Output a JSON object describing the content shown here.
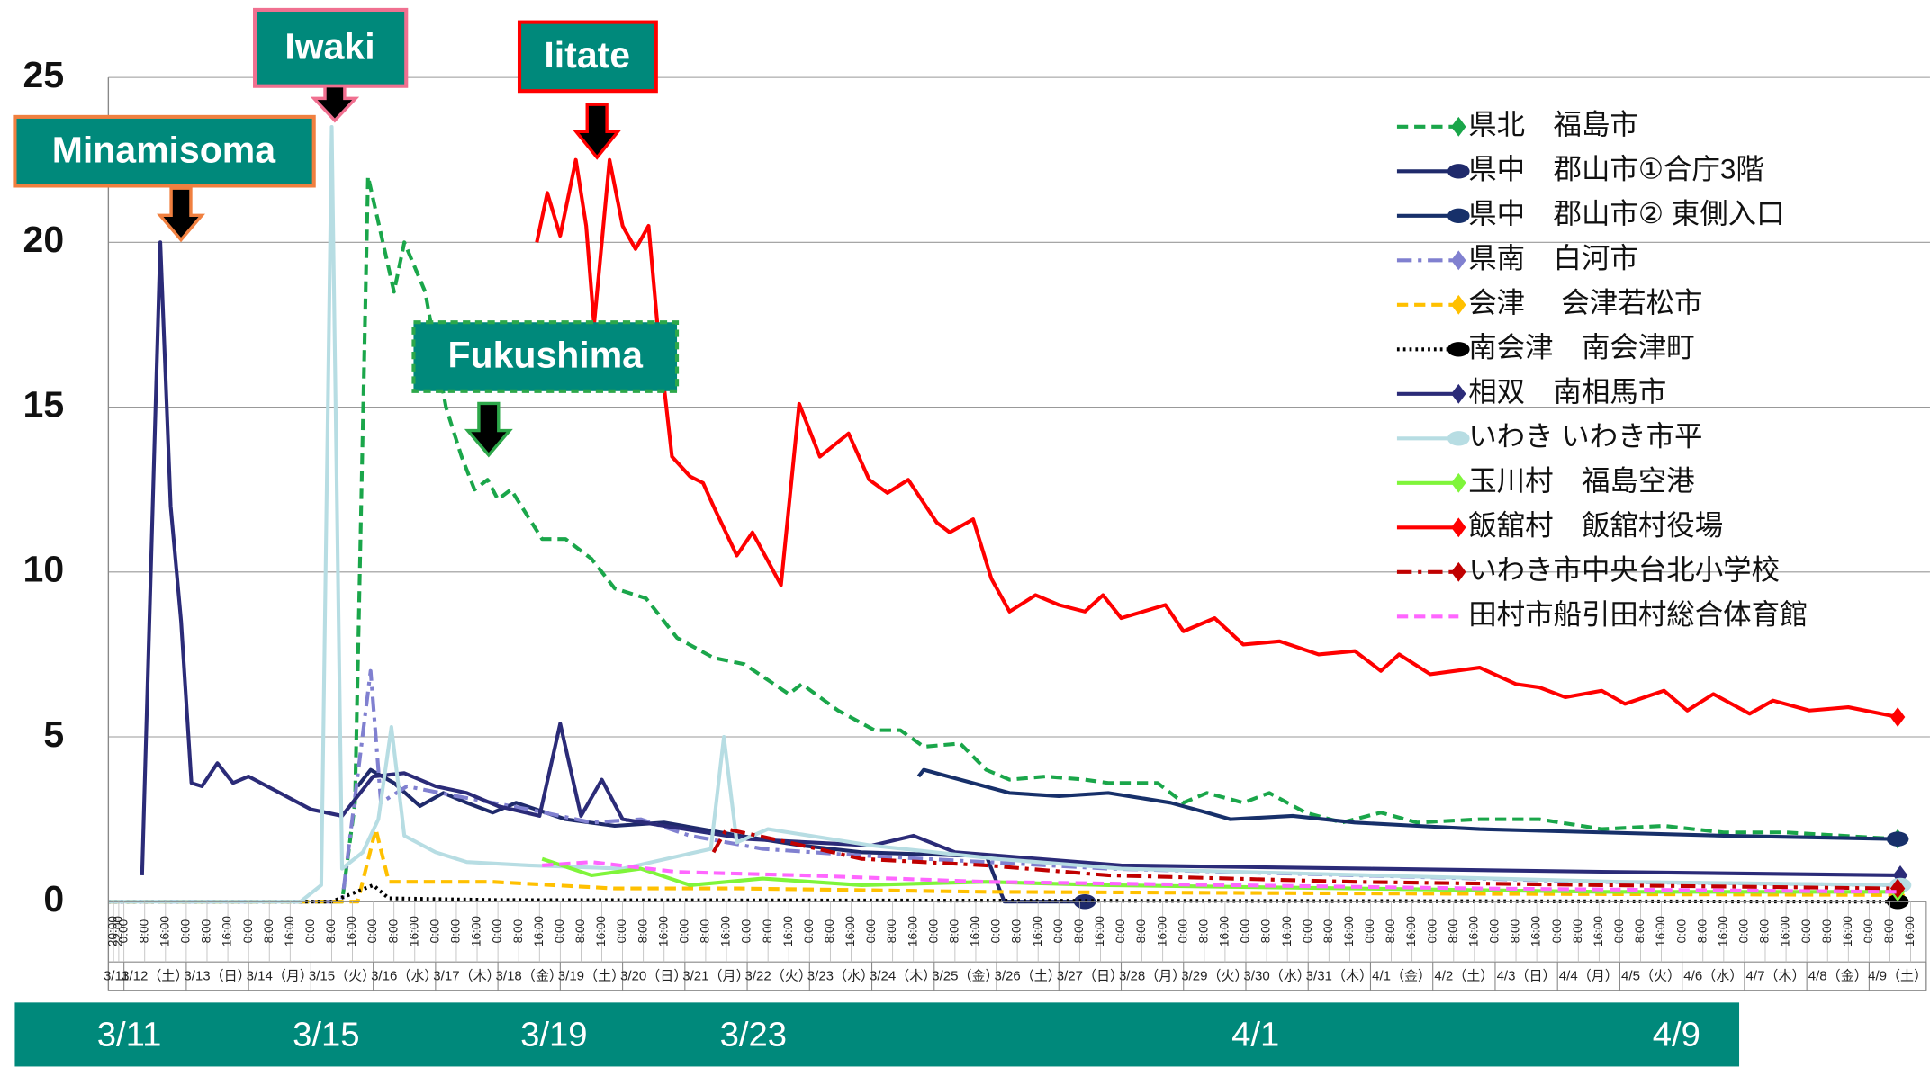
{
  "chart_data": {
    "type": "line",
    "annotations": [
      "Minamisoma",
      "Iwaki",
      "Iitate",
      "Fukushima"
    ],
    "timeline": [
      "3/11",
      "3/15",
      "3/19",
      "3/23",
      "4/1",
      "4/9"
    ],
    "xlim": [
      "3/11 18:00",
      "4/9 22:00"
    ],
    "ylim": [
      0,
      25
    ],
    "yticks": [
      0,
      5,
      10,
      15,
      20,
      25
    ],
    "grid": true,
    "day_labels": [
      "3/11",
      "3/12（土）",
      "3/13（日）",
      "3/14（月）",
      "3/15（火）",
      "3/16（水）",
      "3/17（木）",
      "3/18（金）",
      "3/19（土）",
      "3/20（日）",
      "3/21（月）",
      "3/22（火）",
      "3/23（水）",
      "3/24（木）",
      "3/25（金）",
      "3/26（土）",
      "3/27（日）",
      "3/28（月）",
      "3/29（火）",
      "3/30（水）",
      "3/31（木）",
      "4/1（金）",
      "4/2（土）",
      "4/3（日）",
      "4/4（月）",
      "4/5（火）",
      "4/6（水）",
      "4/7（木）",
      "4/8（金）",
      "4/9（土）"
    ],
    "xticks": [
      {
        "value": "3/11 20:00",
        "label": "20:00"
      },
      {
        "value": "3/11 22:00",
        "label": "22:00"
      },
      {
        "value": "3/12 0:00",
        "label": "0:00"
      },
      {
        "value": "3/12 8:00",
        "label": "8:00"
      },
      {
        "value": "3/12 16:00",
        "label": "16:00"
      },
      {
        "value": "3/13 0:00",
        "label": "0:00"
      },
      {
        "value": "3/13 8:00",
        "label": "8:00"
      },
      {
        "value": "3/13 16:00",
        "label": "16:00"
      },
      {
        "value": "3/14 0:00",
        "label": "0:00"
      },
      {
        "value": "3/14 8:00",
        "label": "8:00"
      },
      {
        "value": "3/14 16:00",
        "label": "16:00"
      },
      {
        "value": "3/15 0:00",
        "label": "0:00"
      },
      {
        "value": "3/15 8:00",
        "label": "8:00"
      },
      {
        "value": "3/15 16:00",
        "label": "16:00"
      },
      {
        "value": "3/16 0:00",
        "label": "0:00"
      },
      {
        "value": "3/16 8:00",
        "label": "8:00"
      },
      {
        "value": "3/16 16:00",
        "label": "16:00"
      },
      {
        "value": "3/17 0:00",
        "label": "0:00"
      },
      {
        "value": "3/17 8:00",
        "label": "8:00"
      },
      {
        "value": "3/17 16:00",
        "label": "16:00"
      },
      {
        "value": "3/18 0:00",
        "label": "0:00"
      },
      {
        "value": "3/18 8:00",
        "label": "8:00"
      },
      {
        "value": "3/18 16:00",
        "label": "16:00"
      },
      {
        "value": "3/19 0:00",
        "label": "0:00"
      },
      {
        "value": "3/19 8:00",
        "label": "8:00"
      },
      {
        "value": "3/19 16:00",
        "label": "16:00"
      },
      {
        "value": "3/20 0:00",
        "label": "0:00"
      },
      {
        "value": "3/20 8:00",
        "label": "8:00"
      },
      {
        "value": "3/20 16:00",
        "label": "16:00"
      },
      {
        "value": "3/21 0:00",
        "label": "0:00"
      },
      {
        "value": "3/21 8:00",
        "label": "8:00"
      },
      {
        "value": "3/21 16:00",
        "label": "16:00"
      },
      {
        "value": "3/22 0:00",
        "label": "0:00"
      },
      {
        "value": "3/22 8:00",
        "label": "8:00"
      },
      {
        "value": "3/22 16:00",
        "label": "16:00"
      },
      {
        "value": "3/23 0:00",
        "label": "0:00"
      },
      {
        "value": "3/23 8:00",
        "label": "8:00"
      },
      {
        "value": "3/23 16:00",
        "label": "16:00"
      },
      {
        "value": "3/24 0:00",
        "label": "0:00"
      },
      {
        "value": "3/24 8:00",
        "label": "8:00"
      },
      {
        "value": "3/24 16:00",
        "label": "16:00"
      },
      {
        "value": "3/25 0:00",
        "label": "0:00"
      },
      {
        "value": "3/25 8:00",
        "label": "8:00"
      },
      {
        "value": "3/25 16:00",
        "label": "16:00"
      },
      {
        "value": "3/26 0:00",
        "label": "0:00"
      },
      {
        "value": "3/26 8:00",
        "label": "8:00"
      },
      {
        "value": "3/26 16:00",
        "label": "16:00"
      },
      {
        "value": "3/27 0:00",
        "label": "0:00"
      },
      {
        "value": "3/27 8:00",
        "label": "8:00"
      },
      {
        "value": "3/27 16:00",
        "label": "16:00"
      },
      {
        "value": "3/28 0:00",
        "label": "0:00"
      },
      {
        "value": "3/28 8:00",
        "label": "8:00"
      },
      {
        "value": "3/28 16:00",
        "label": "16:00"
      },
      {
        "value": "3/29 0:00",
        "label": "0:00"
      },
      {
        "value": "3/29 8:00",
        "label": "8:00"
      },
      {
        "value": "3/29 16:00",
        "label": "16:00"
      },
      {
        "value": "3/30 0:00",
        "label": "0:00"
      },
      {
        "value": "3/30 8:00",
        "label": "8:00"
      },
      {
        "value": "3/30 16:00",
        "label": "16:00"
      },
      {
        "value": "3/31 0:00",
        "label": "0:00"
      },
      {
        "value": "3/31 8:00",
        "label": "8:00"
      },
      {
        "value": "3/31 16:00",
        "label": "16:00"
      },
      {
        "value": "4/1 0:00",
        "label": "0:00"
      },
      {
        "value": "4/1 8:00",
        "label": "8:00"
      },
      {
        "value": "4/1 16:00",
        "label": "16:00"
      },
      {
        "value": "4/2 0:00",
        "label": "0:00"
      },
      {
        "value": "4/2 8:00",
        "label": "8:00"
      },
      {
        "value": "4/2 16:00",
        "label": "16:00"
      },
      {
        "value": "4/3 0:00",
        "label": "0:00"
      },
      {
        "value": "4/3 8:00",
        "label": "8:00"
      },
      {
        "value": "4/3 16:00",
        "label": "16:00"
      },
      {
        "value": "4/4 0:00",
        "label": "0:00"
      },
      {
        "value": "4/4 8:00",
        "label": "8:00"
      },
      {
        "value": "4/4 16:00",
        "label": "16:00"
      },
      {
        "value": "4/5 0:00",
        "label": "0:00"
      },
      {
        "value": "4/5 8:00",
        "label": "8:00"
      },
      {
        "value": "4/5 16:00",
        "label": "16:00"
      },
      {
        "value": "4/6 0:00",
        "label": "0:00"
      },
      {
        "value": "4/6 8:00",
        "label": "8:00"
      },
      {
        "value": "4/6 16:00",
        "label": "16:00"
      },
      {
        "value": "4/7 0:00",
        "label": "0:00"
      },
      {
        "value": "4/7 8:00",
        "label": "8:00"
      },
      {
        "value": "4/7 16:00",
        "label": "16:00"
      },
      {
        "value": "4/8 0:00",
        "label": "0:00"
      },
      {
        "value": "4/8 8:00",
        "label": "8:00"
      },
      {
        "value": "4/8 16:00",
        "label": "16:00"
      },
      {
        "value": "4/9 0:00",
        "label": "0:00"
      },
      {
        "value": "4/9 8:00",
        "label": "8:00"
      },
      {
        "value": "4/9 16:00",
        "label": "16:00"
      }
    ],
    "series": [
      {
        "name": "県北　福島市",
        "color": "#1aa64a",
        "dash": "dashed",
        "marker": "diamond",
        "x": [
          "3/11 18:00",
          "3/15 12:00",
          "3/15 17:00",
          "3/15 22:00",
          "3/16 8:00",
          "3/16 12:00",
          "3/16 20:00",
          "3/17 4:00",
          "3/17 10:00",
          "3/17 15:00",
          "3/17 20:00",
          "3/18 0:00",
          "3/18 5:00",
          "3/18 17:00",
          "3/19 2:00",
          "3/19 12:00",
          "3/19 21:00",
          "3/20 9:00",
          "3/20 21:00",
          "3/21 11:00",
          "3/21 23:00",
          "3/22 16:00",
          "3/22 21:00",
          "3/23 11:00",
          "3/24 1:00",
          "3/24 11:00",
          "3/24 20:00",
          "3/25 10:00",
          "3/25 20:00",
          "3/26 5:00",
          "3/26 19:00",
          "3/27 10:00",
          "3/27 19:00",
          "3/28 14:00",
          "3/29 0:00",
          "3/29 9:00",
          "3/29 23:00",
          "3/30 9:00",
          "3/30 23:00",
          "3/31 13:00",
          "4/1 4:00",
          "4/1 18:00",
          "4/2 18:00",
          "4/3 17:00",
          "4/4 17:00",
          "4/5 17:00",
          "4/6 16:00",
          "4/7 16:00",
          "4/9 11:00"
        ],
        "values": [
          0,
          0,
          3,
          22,
          18.5,
          20,
          18.5,
          15,
          13.5,
          12.5,
          12.8,
          12.2,
          12.5,
          11,
          11,
          10.4,
          9.5,
          9.2,
          8,
          7.4,
          7.2,
          6.3,
          6.6,
          5.8,
          5.2,
          5.2,
          4.7,
          4.8,
          4,
          3.7,
          3.8,
          3.7,
          3.6,
          3.6,
          3,
          3.3,
          3,
          3.3,
          2.7,
          2.4,
          2.7,
          2.4,
          2.5,
          2.5,
          2.2,
          2.3,
          2.1,
          2.1,
          1.9
        ]
      },
      {
        "name": "県中　郡山市①合庁3階",
        "color": "#1f2a6b",
        "dash": "solid",
        "marker": "circle",
        "x": [
          "3/15 18:00",
          "3/15 23:00",
          "3/16 8:00",
          "3/16 18:00",
          "3/17 3:00",
          "3/17 12:00",
          "3/17 22:00",
          "3/18 7:00",
          "3/19 2:00",
          "3/19 21:00",
          "3/20 16:00",
          "3/21 21:00",
          "3/22 21:00",
          "3/23 20:00",
          "3/25 10:00",
          "3/25 20:00",
          "3/26 3:00",
          "3/27 10:00"
        ],
        "values": [
          3.5,
          4,
          3.6,
          2.9,
          3.3,
          3,
          2.7,
          3,
          2.5,
          2.3,
          2.4,
          2,
          1.7,
          1.5,
          1.4,
          1.4,
          0,
          0
        ]
      },
      {
        "name": "県中　郡山市② 東側入口",
        "color": "#17306a",
        "dash": "solid",
        "marker": "circle",
        "x": [
          "3/24 18:00",
          "3/24 20:00",
          "3/25 10:00",
          "3/26 5:00",
          "3/27 0:00",
          "3/27 19:00",
          "3/28 19:00",
          "3/29 9:00",
          "3/29 18:00",
          "3/30 18:00",
          "3/31 18:00",
          "4/1 18:00",
          "4/2 18:00",
          "4/4 17:00",
          "4/6 16:00",
          "4/9 11:00"
        ],
        "values": [
          3.8,
          4,
          3.7,
          3.3,
          3.2,
          3.3,
          3,
          2.7,
          2.5,
          2.6,
          2.4,
          2.3,
          2.2,
          2.1,
          2,
          1.9
        ]
      },
      {
        "name": "県南　白河市",
        "color": "#8080d0",
        "dash": "dashdot",
        "marker": "diamond",
        "x": [
          "3/11 18:00",
          "3/15 12:00",
          "3/15 23:00",
          "3/16 3:00",
          "3/16 13:00",
          "3/17 8:00",
          "3/18 12:00",
          "3/19 12:00",
          "3/20 7:00",
          "3/21 2:00",
          "3/22 6:00",
          "3/23 20:00",
          "3/25 20:00",
          "3/27 19:00",
          "3/31 18:00",
          "4/4 17:00",
          "4/9 11:00"
        ],
        "values": [
          0,
          0,
          7,
          3,
          3.5,
          3.2,
          2.8,
          2.4,
          2.5,
          2,
          1.6,
          1.4,
          1.2,
          1,
          0.8,
          0.6,
          0.5
        ]
      },
      {
        "name": "会津　 会津若松市",
        "color": "#ffc000",
        "dash": "dashed",
        "marker": "diamond",
        "x": [
          "3/11 18:00",
          "3/15 18:00",
          "3/16 1:00",
          "3/16 6:00",
          "3/17 22:00",
          "3/19 21:00",
          "3/21 21:00",
          "3/25 20:00",
          "3/31 18:00",
          "4/9 11:00"
        ],
        "values": [
          0,
          0,
          2.2,
          0.6,
          0.6,
          0.4,
          0.4,
          0.3,
          0.25,
          0.2
        ]
      },
      {
        "name": "南会津　南会津町",
        "color": "#000000",
        "dash": "dotted",
        "marker": "circle",
        "x": [
          "3/11 18:00",
          "3/15 8:00",
          "3/16 0:00",
          "3/16 6:00",
          "3/18 0:00",
          "4/9 11:00"
        ],
        "values": [
          0,
          0,
          0.5,
          0.1,
          0.05,
          0
        ]
      },
      {
        "name": "相双　南相馬市",
        "color": "#2b2b78",
        "dash": "solid",
        "marker": "diamond",
        "x": [
          "3/12 7:00",
          "3/12 14:00",
          "3/12 18:00",
          "3/12 22:00",
          "3/13 2:00",
          "3/13 6:00",
          "3/13 12:00",
          "3/13 18:00",
          "3/14 0:00",
          "3/14 12:00",
          "3/15 0:00",
          "3/15 12:00",
          "3/16 0:00",
          "3/16 12:00",
          "3/17 0:00",
          "3/17 12:00",
          "3/18 0:00",
          "3/18 16:00",
          "3/19 0:00",
          "3/19 8:00",
          "3/19 16:00",
          "3/20 0:00",
          "3/21 0:00",
          "3/22 0:00",
          "3/23 0:00",
          "3/24 0:00",
          "3/24 16:00",
          "3/25 8:00",
          "3/26 0:00",
          "3/28 0:00",
          "4/1 0:00",
          "4/5 0:00",
          "4/9 12:00"
        ],
        "values": [
          0.8,
          20,
          12,
          8.5,
          3.6,
          3.5,
          4.2,
          3.6,
          3.8,
          3.3,
          2.8,
          2.6,
          3.8,
          3.9,
          3.5,
          3.3,
          2.9,
          2.6,
          5.4,
          2.6,
          3.7,
          2.5,
          2.2,
          1.9,
          1.8,
          1.7,
          2,
          1.5,
          1.4,
          1.1,
          1,
          0.9,
          0.8
        ]
      },
      {
        "name": "いわき いわき市平",
        "color": "#b7dde3",
        "dash": "solid",
        "marker": "circle",
        "x": [
          "3/11 18:00",
          "3/14 20:00",
          "3/15 4:00",
          "3/15 8:00",
          "3/15 12:00",
          "3/15 20:00",
          "3/16 2:00",
          "3/16 7:00",
          "3/16 12:00",
          "3/17 0:00",
          "3/17 12:00",
          "3/18 12:00",
          "3/20 0:00",
          "3/21 10:00",
          "3/21 15:00",
          "3/21 20:00",
          "3/22 8:00",
          "3/24 0:00",
          "3/25 0:00",
          "3/26 0:00",
          "3/28 0:00",
          "4/1 0:00",
          "4/5 0:00",
          "4/9 12:00"
        ],
        "values": [
          0,
          0,
          0.5,
          23.5,
          1,
          1.5,
          2.5,
          5.3,
          2,
          1.5,
          1.2,
          1.1,
          1,
          1.6,
          5,
          1.8,
          2.2,
          1.7,
          1.5,
          1.3,
          1,
          0.8,
          0.6,
          0.5
        ]
      },
      {
        "name": "玉川村　福島空港",
        "color": "#7ff53a",
        "dash": "solid",
        "marker": "diamond",
        "x": [
          "3/18 17:00",
          "3/19 12:00",
          "3/20 7:00",
          "3/21 2:00",
          "3/22 6:00",
          "3/23 20:00",
          "3/25 20:00",
          "3/27 19:00",
          "3/31 18:00",
          "4/4 17:00",
          "4/9 11:00"
        ],
        "values": [
          1.3,
          0.8,
          1,
          0.5,
          0.7,
          0.5,
          0.6,
          0.5,
          0.4,
          0.3,
          0.3
        ]
      },
      {
        "name": "飯舘村　飯舘村役場",
        "color": "#ff0000",
        "dash": "solid",
        "marker": "diamond",
        "x": [
          "3/18 15:00",
          "3/18 19:00",
          "3/19 0:00",
          "3/19 6:00",
          "3/19 10:00",
          "3/19 13:00",
          "3/19 19:00",
          "3/20 0:00",
          "3/20 5:00",
          "3/20 10:00",
          "3/20 14:00",
          "3/20 19:00",
          "3/21 2:00",
          "3/21 7:00",
          "3/21 11:00",
          "3/21 20:00",
          "3/22 2:00",
          "3/22 13:00",
          "3/22 20:00",
          "3/23 4:00",
          "3/23 15:00",
          "3/23 23:00",
          "3/24 6:00",
          "3/24 14:00",
          "3/25 1:00",
          "3/25 6:00",
          "3/25 15:00",
          "3/25 22:00",
          "3/26 5:00",
          "3/26 15:00",
          "3/27 0:00",
          "3/27 10:00",
          "3/27 17:00",
          "3/28 0:00",
          "3/28 17:00",
          "3/29 0:00",
          "3/29 12:00",
          "3/29 23:00",
          "3/30 13:00",
          "3/31 4:00",
          "3/31 18:00",
          "4/1 4:00",
          "4/1 11:00",
          "4/1 23:00",
          "4/2 18:00",
          "4/3 8:00",
          "4/3 17:00",
          "4/4 3:00",
          "4/4 17:00",
          "4/5 2:00",
          "4/5 17:00",
          "4/6 2:00",
          "4/6 12:00",
          "4/7 2:00",
          "4/7 11:00",
          "4/8 1:00",
          "4/8 16:00",
          "4/9 11:00"
        ],
        "values": [
          20,
          21.5,
          20.2,
          22.5,
          20.5,
          17.5,
          22.5,
          20.5,
          19.8,
          20.5,
          17,
          13.5,
          12.9,
          12.7,
          12,
          10.5,
          11.2,
          9.6,
          15.1,
          13.5,
          14.2,
          12.8,
          12.4,
          12.8,
          11.5,
          11.2,
          11.6,
          9.8,
          8.8,
          9.3,
          9,
          8.8,
          9.3,
          8.6,
          9,
          8.2,
          8.6,
          7.8,
          7.9,
          7.5,
          7.6,
          7,
          7.5,
          6.9,
          7.1,
          6.6,
          6.5,
          6.2,
          6.4,
          6,
          6.4,
          5.8,
          6.3,
          5.7,
          6.1,
          5.8,
          5.9,
          5.6
        ]
      },
      {
        "name": "いわき市中央台北小学校",
        "color": "#c00000",
        "dash": "dashdot",
        "marker": "diamond",
        "x": [
          "3/21 11:00",
          "3/21 16:00",
          "3/22 16:00",
          "3/23 20:00",
          "3/25 20:00",
          "3/27 19:00",
          "3/29 18:00",
          "3/31 18:00",
          "4/4 17:00",
          "4/9 11:00"
        ],
        "values": [
          1.5,
          2.2,
          1.8,
          1.3,
          1.1,
          0.8,
          0.7,
          0.6,
          0.5,
          0.4
        ]
      },
      {
        "name": "田村市船引田村総合体育館",
        "color": "#ff66ff",
        "dash": "dashed",
        "marker": "none",
        "x": [
          "3/18 17:00",
          "3/19 12:00",
          "3/20 21:00",
          "3/22 21:00",
          "3/25 20:00",
          "3/29 18:00",
          "4/2 18:00",
          "4/9 11:00"
        ],
        "values": [
          1.1,
          1.2,
          0.9,
          0.8,
          0.6,
          0.5,
          0.4,
          0.3
        ]
      }
    ]
  }
}
